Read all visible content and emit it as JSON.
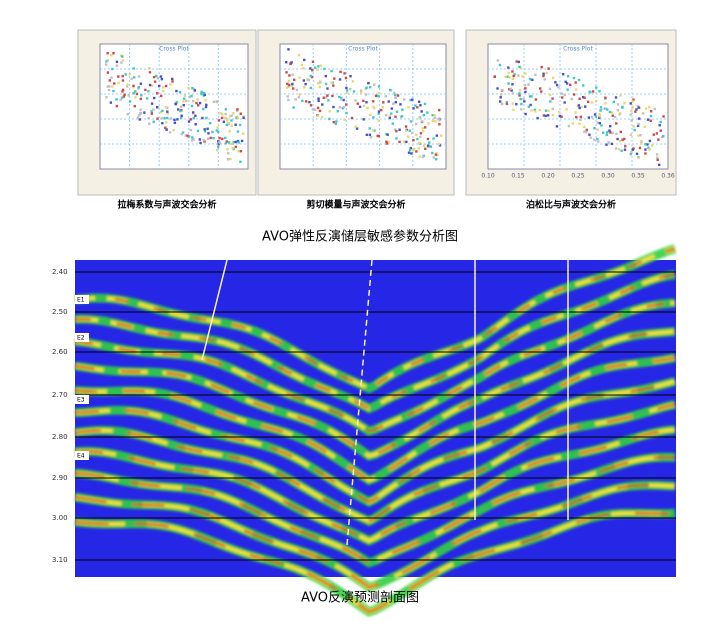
{
  "panels": [
    {
      "title": "Cross Plot",
      "caption": "拉梅系数与声波交会分析"
    },
    {
      "title": "Cross Plot",
      "caption": "剪切模量与声波交会分析"
    },
    {
      "title": "Cross Plot",
      "caption": "泊松比与声波交会分析",
      "xticks": [
        "0.10",
        "0.15",
        "0.20",
        "0.25",
        "0.30",
        "0.35",
        "0.36"
      ]
    }
  ],
  "top_caption": "AVO弹性反演储层敏感参数分析图",
  "section": {
    "time_labels": [
      "2.40",
      "2.50",
      "2.60",
      "2.70",
      "2.80",
      "2.90",
      "3.00",
      "3.10"
    ],
    "horizons": [
      "E1",
      "E2",
      "E3",
      "E4"
    ]
  },
  "bottom_caption": "AVO反演预测剖面图"
}
